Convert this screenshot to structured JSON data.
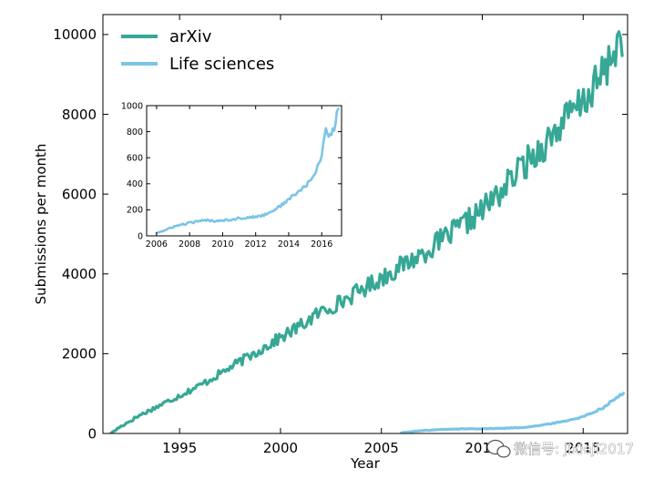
{
  "chart_data": [
    {
      "type": "line",
      "xlabel": "Year",
      "ylabel": "Submissions per month",
      "xlim": [
        1991.2,
        2017.2
      ],
      "ylim": [
        0,
        10500
      ],
      "xticks": [
        1995,
        2000,
        2005,
        2010,
        2015
      ],
      "xtick_labels": [
        "1995",
        "2000",
        "2005",
        "2010",
        "2015"
      ],
      "yticks": [
        0,
        2000,
        4000,
        6000,
        8000,
        10000
      ],
      "ytick_labels": [
        "0",
        "2000",
        "4000",
        "6000",
        "8000",
        "10000"
      ],
      "grid": false,
      "legend": "top-left",
      "series": [
        {
          "name": "arXiv",
          "color": "#36a895",
          "x": [
            1991.6,
            1992,
            1993,
            1994,
            1995,
            1996,
            1997,
            1998,
            1999,
            2000,
            2001,
            2002,
            2003,
            2004,
            2005,
            2006,
            2007,
            2008,
            2009,
            2010,
            2011,
            2012,
            2013,
            2014,
            2015,
            2016,
            2017
          ],
          "y": [
            0,
            150,
            450,
            700,
            950,
            1200,
            1500,
            1800,
            2100,
            2400,
            2700,
            3050,
            3300,
            3600,
            3900,
            4200,
            4500,
            4850,
            5200,
            5600,
            6100,
            6700,
            7200,
            7800,
            8300,
            9000,
            10100
          ]
        },
        {
          "name": "Life sciences",
          "color": "#7cc4e6",
          "x": [
            2006,
            2007,
            2008,
            2009,
            2010,
            2011,
            2012,
            2013,
            2014,
            2015,
            2016,
            2016.5,
            2017
          ],
          "y": [
            20,
            70,
            100,
            115,
            120,
            130,
            150,
            210,
            300,
            420,
            650,
            850,
            1000
          ]
        }
      ]
    },
    {
      "type": "line",
      "xlabel": "",
      "ylabel": "",
      "xlim": [
        2005.4,
        2017.2
      ],
      "ylim": [
        0,
        1000
      ],
      "xticks": [
        2006,
        2008,
        2010,
        2012,
        2014,
        2016
      ],
      "xtick_labels": [
        "2006",
        "2008",
        "2010",
        "2012",
        "2014",
        "2016"
      ],
      "yticks": [
        0,
        200,
        400,
        600,
        800,
        1000
      ],
      "ytick_labels": [
        "0",
        "200",
        "400",
        "600",
        "800",
        "1000"
      ],
      "grid": false,
      "series": [
        {
          "color": "#7cc4e6",
          "x": [
            2006,
            2006.5,
            2007,
            2007.5,
            2008,
            2008.5,
            2009,
            2009.5,
            2010,
            2010.5,
            2011,
            2011.5,
            2012,
            2012.5,
            2013,
            2013.5,
            2014,
            2014.5,
            2015,
            2015.5,
            2016,
            2016.25,
            2016.5,
            2016.75,
            2017
          ],
          "y": [
            25,
            40,
            70,
            85,
            100,
            110,
            120,
            115,
            120,
            125,
            135,
            140,
            145,
            160,
            190,
            230,
            280,
            330,
            380,
            450,
            620,
            830,
            760,
            820,
            1000
          ]
        }
      ]
    }
  ],
  "watermark": {
    "icon": "wechat-icon",
    "text": "微信号: jixieji2017"
  }
}
